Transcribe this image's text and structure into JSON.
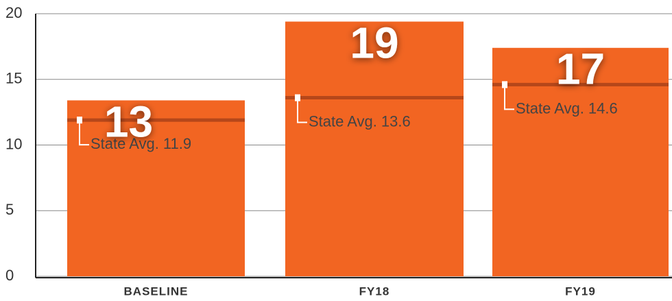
{
  "chart_data": {
    "type": "bar",
    "categories": [
      "BASELINE",
      "FY18",
      "FY19"
    ],
    "values": [
      13.4,
      19.4,
      17.4
    ],
    "value_labels": [
      "13",
      "19",
      "17"
    ],
    "color": "#f26522",
    "ylim": [
      0,
      20
    ],
    "yticks": [
      0,
      5,
      10,
      15,
      20
    ],
    "grid": true,
    "reference": {
      "label": "State Avg.",
      "values": [
        11.9,
        13.6,
        14.6
      ],
      "color": "#b5471a"
    }
  }
}
